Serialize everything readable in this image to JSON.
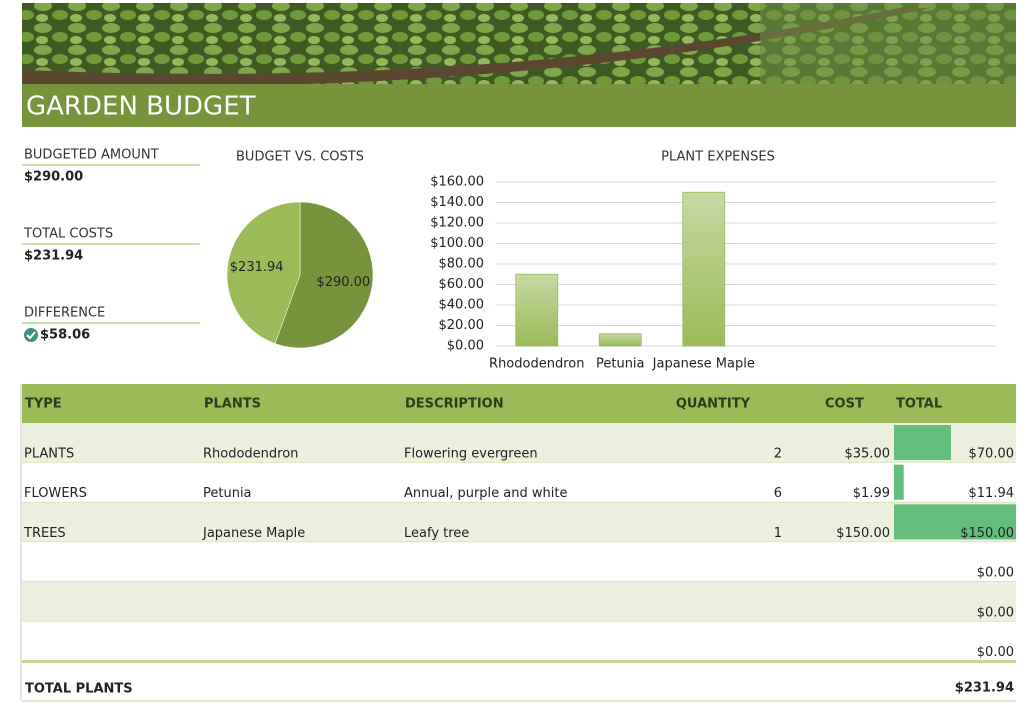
{
  "header": {
    "title": "GARDEN BUDGET"
  },
  "summary": {
    "budgeted_label": "BUDGETED AMOUNT",
    "budgeted_value": "$290.00",
    "costs_label": "TOTAL COSTS",
    "costs_value": "$231.94",
    "difference_label": "DIFFERENCE",
    "difference_value": "$58.06"
  },
  "chart_data": [
    {
      "type": "pie",
      "title": "BUDGET VS. COSTS",
      "values": [
        290,
        231.94
      ],
      "value_labels": [
        "$290.00",
        "$231.94"
      ],
      "colors": [
        "#77933c",
        "#9bbb59"
      ]
    },
    {
      "type": "bar",
      "title": "PLANT EXPENSES",
      "categories": [
        "Rhododendron",
        "Petunia",
        "Japanese Maple",
        null,
        null,
        null
      ],
      "values": [
        70,
        11.94,
        150,
        0,
        0,
        0
      ],
      "color": "#9bbb59",
      "ylim": [
        0,
        160
      ],
      "yticks": [
        {
          "value": 0,
          "label": "$0.00"
        },
        {
          "value": 20,
          "label": "$20.00"
        },
        {
          "value": 40,
          "label": "$40.00"
        },
        {
          "value": 60,
          "label": "$60.00"
        },
        {
          "value": 80,
          "label": "$80.00"
        },
        {
          "value": 100,
          "label": "$100.00"
        },
        {
          "value": 120,
          "label": "$120.00"
        },
        {
          "value": 140,
          "label": "$140.00"
        },
        {
          "value": 160,
          "label": "$160.00"
        }
      ],
      "grid": true
    }
  ],
  "table": {
    "columns": [
      "TYPE",
      "PLANTS",
      "DESCRIPTION",
      "QUANTITY",
      "COST",
      "TOTAL"
    ],
    "rows": [
      [
        "PLANTS",
        "Rhododendron",
        "Flowering evergreen",
        "2",
        "$35.00",
        "$70.00"
      ],
      [
        "FLOWERS",
        "Petunia",
        "Annual, purple and white",
        "6",
        "$1.99",
        "$11.94"
      ],
      [
        "TREES",
        "Japanese Maple",
        "Leafy tree",
        "1",
        "$150.00",
        "$150.00"
      ],
      [
        null,
        null,
        null,
        null,
        null,
        "$0.00"
      ],
      [
        null,
        null,
        null,
        null,
        null,
        "$0.00"
      ],
      [
        null,
        null,
        null,
        null,
        null,
        "$0.00"
      ]
    ],
    "data_bars": [
      70,
      11.94,
      150,
      0,
      0,
      0
    ],
    "bar_color": "#63be7b",
    "footer": {
      "label": "TOTAL PLANTS",
      "value": "$231.94"
    }
  }
}
